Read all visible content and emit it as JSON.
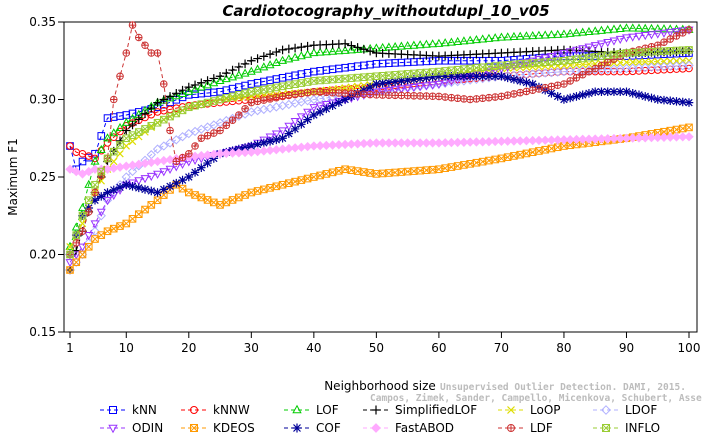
{
  "chart_data": {
    "type": "line",
    "title": "Cardiotocography_withoutdupl_10_v05",
    "xlabel": "Neighborhood size",
    "ylabel": "Maximum F1",
    "xlim": [
      1,
      100
    ],
    "ylim": [
      0.15,
      0.35
    ],
    "xticks": [
      1,
      10,
      20,
      30,
      40,
      50,
      60,
      70,
      80,
      90,
      100
    ],
    "yticks": [
      0.15,
      0.2,
      0.25,
      0.3,
      0.35
    ],
    "ytick_labels": [
      "0.15",
      "0.20",
      "0.25",
      "0.30",
      "0.35"
    ],
    "grid": false,
    "legend_position": "bottom",
    "watermark": [
      "Unsupervised Outlier Detection. DAMI, 2015.",
      "Campos, Zimek, Sander, Campello, Micenkova, Schubert, Assent, Houle"
    ],
    "series": [
      {
        "name": "kNN",
        "color": "#0000ff",
        "marker": "square",
        "points": [
          [
            1,
            0.27
          ],
          [
            2,
            0.255
          ],
          [
            3,
            0.26
          ],
          [
            5,
            0.265
          ],
          [
            7,
            0.288
          ],
          [
            10,
            0.29
          ],
          [
            15,
            0.295
          ],
          [
            20,
            0.303
          ],
          [
            25,
            0.305
          ],
          [
            30,
            0.31
          ],
          [
            40,
            0.318
          ],
          [
            50,
            0.323
          ],
          [
            60,
            0.325
          ],
          [
            70,
            0.325
          ],
          [
            80,
            0.328
          ],
          [
            90,
            0.328
          ],
          [
            100,
            0.33
          ]
        ]
      },
      {
        "name": "kNNW",
        "color": "#ff0000",
        "marker": "circle",
        "points": [
          [
            1,
            0.27
          ],
          [
            2,
            0.266
          ],
          [
            3,
            0.265
          ],
          [
            5,
            0.262
          ],
          [
            7,
            0.272
          ],
          [
            10,
            0.283
          ],
          [
            15,
            0.292
          ],
          [
            20,
            0.296
          ],
          [
            25,
            0.298
          ],
          [
            30,
            0.3
          ],
          [
            40,
            0.305
          ],
          [
            50,
            0.308
          ],
          [
            60,
            0.312
          ],
          [
            70,
            0.315
          ],
          [
            80,
            0.318
          ],
          [
            90,
            0.318
          ],
          [
            100,
            0.32
          ]
        ]
      },
      {
        "name": "LOF",
        "color": "#00cc00",
        "marker": "triangle-up",
        "points": [
          [
            1,
            0.205
          ],
          [
            3,
            0.23
          ],
          [
            5,
            0.26
          ],
          [
            7,
            0.275
          ],
          [
            10,
            0.285
          ],
          [
            15,
            0.298
          ],
          [
            20,
            0.305
          ],
          [
            25,
            0.312
          ],
          [
            30,
            0.318
          ],
          [
            35,
            0.325
          ],
          [
            40,
            0.33
          ],
          [
            50,
            0.333
          ],
          [
            60,
            0.336
          ],
          [
            70,
            0.34
          ],
          [
            80,
            0.342
          ],
          [
            90,
            0.346
          ],
          [
            100,
            0.345
          ]
        ]
      },
      {
        "name": "SimplifiedLOF",
        "color": "#000000",
        "marker": "plus",
        "points": [
          [
            1,
            0.19
          ],
          [
            3,
            0.215
          ],
          [
            5,
            0.24
          ],
          [
            7,
            0.26
          ],
          [
            10,
            0.28
          ],
          [
            15,
            0.298
          ],
          [
            20,
            0.308
          ],
          [
            25,
            0.315
          ],
          [
            30,
            0.325
          ],
          [
            35,
            0.332
          ],
          [
            40,
            0.335
          ],
          [
            45,
            0.336
          ],
          [
            50,
            0.33
          ],
          [
            60,
            0.328
          ],
          [
            70,
            0.33
          ],
          [
            80,
            0.332
          ],
          [
            90,
            0.33
          ],
          [
            100,
            0.331
          ]
        ]
      },
      {
        "name": "LoOP",
        "color": "#dddd00",
        "marker": "cross",
        "points": [
          [
            1,
            0.205
          ],
          [
            3,
            0.22
          ],
          [
            5,
            0.24
          ],
          [
            7,
            0.255
          ],
          [
            10,
            0.27
          ],
          [
            15,
            0.285
          ],
          [
            20,
            0.295
          ],
          [
            25,
            0.3
          ],
          [
            30,
            0.302
          ],
          [
            40,
            0.305
          ],
          [
            50,
            0.31
          ],
          [
            60,
            0.315
          ],
          [
            70,
            0.32
          ],
          [
            80,
            0.322
          ],
          [
            90,
            0.324
          ],
          [
            100,
            0.325
          ]
        ]
      },
      {
        "name": "LDOF",
        "color": "#b0b0ff",
        "marker": "diamond",
        "points": [
          [
            1,
            0.19
          ],
          [
            3,
            0.2
          ],
          [
            5,
            0.215
          ],
          [
            7,
            0.235
          ],
          [
            10,
            0.25
          ],
          [
            15,
            0.268
          ],
          [
            20,
            0.278
          ],
          [
            25,
            0.285
          ],
          [
            30,
            0.292
          ],
          [
            40,
            0.3
          ],
          [
            50,
            0.305
          ],
          [
            60,
            0.31
          ],
          [
            70,
            0.315
          ],
          [
            80,
            0.318
          ],
          [
            90,
            0.32
          ],
          [
            100,
            0.322
          ]
        ]
      },
      {
        "name": "ODIN",
        "color": "#9933ff",
        "marker": "triangle-down",
        "points": [
          [
            1,
            0.195
          ],
          [
            3,
            0.205
          ],
          [
            5,
            0.22
          ],
          [
            7,
            0.235
          ],
          [
            10,
            0.245
          ],
          [
            15,
            0.252
          ],
          [
            20,
            0.26
          ],
          [
            25,
            0.265
          ],
          [
            30,
            0.27
          ],
          [
            35,
            0.28
          ],
          [
            40,
            0.295
          ],
          [
            45,
            0.3
          ],
          [
            50,
            0.305
          ],
          [
            60,
            0.31
          ],
          [
            70,
            0.32
          ],
          [
            80,
            0.33
          ],
          [
            90,
            0.34
          ],
          [
            100,
            0.345
          ]
        ]
      },
      {
        "name": "KDEOS",
        "color": "#ff9900",
        "marker": "square-x",
        "points": [
          [
            1,
            0.19
          ],
          [
            3,
            0.2
          ],
          [
            5,
            0.21
          ],
          [
            7,
            0.215
          ],
          [
            10,
            0.22
          ],
          [
            15,
            0.235
          ],
          [
            18,
            0.245
          ],
          [
            20,
            0.24
          ],
          [
            25,
            0.232
          ],
          [
            30,
            0.24
          ],
          [
            35,
            0.245
          ],
          [
            40,
            0.25
          ],
          [
            45,
            0.255
          ],
          [
            50,
            0.252
          ],
          [
            60,
            0.255
          ],
          [
            70,
            0.262
          ],
          [
            80,
            0.27
          ],
          [
            90,
            0.275
          ],
          [
            100,
            0.282
          ]
        ]
      },
      {
        "name": "COF",
        "color": "#000099",
        "marker": "star",
        "points": [
          [
            1,
            0.2
          ],
          [
            3,
            0.225
          ],
          [
            5,
            0.235
          ],
          [
            7,
            0.24
          ],
          [
            10,
            0.245
          ],
          [
            15,
            0.24
          ],
          [
            20,
            0.25
          ],
          [
            25,
            0.265
          ],
          [
            30,
            0.27
          ],
          [
            35,
            0.275
          ],
          [
            40,
            0.29
          ],
          [
            45,
            0.3
          ],
          [
            50,
            0.31
          ],
          [
            60,
            0.315
          ],
          [
            70,
            0.315
          ],
          [
            75,
            0.31
          ],
          [
            80,
            0.3
          ],
          [
            85,
            0.305
          ],
          [
            90,
            0.305
          ],
          [
            95,
            0.3
          ],
          [
            100,
            0.298
          ]
        ]
      },
      {
        "name": "FastABOD",
        "color": "#ffaaff",
        "marker": "diamond-filled",
        "points": [
          [
            1,
            0.255
          ],
          [
            3,
            0.252
          ],
          [
            5,
            0.255
          ],
          [
            7,
            0.255
          ],
          [
            10,
            0.257
          ],
          [
            15,
            0.26
          ],
          [
            20,
            0.263
          ],
          [
            25,
            0.265
          ],
          [
            30,
            0.266
          ],
          [
            40,
            0.27
          ],
          [
            50,
            0.272
          ],
          [
            60,
            0.272
          ],
          [
            70,
            0.273
          ],
          [
            80,
            0.274
          ],
          [
            90,
            0.275
          ],
          [
            100,
            0.276
          ]
        ]
      },
      {
        "name": "LDF",
        "color": "#cc3333",
        "marker": "circle-plus",
        "points": [
          [
            1,
            0.2
          ],
          [
            3,
            0.215
          ],
          [
            5,
            0.24
          ],
          [
            7,
            0.262
          ],
          [
            8,
            0.3
          ],
          [
            9,
            0.315
          ],
          [
            10,
            0.33
          ],
          [
            11,
            0.348
          ],
          [
            12,
            0.34
          ],
          [
            13,
            0.335
          ],
          [
            14,
            0.33
          ],
          [
            15,
            0.33
          ],
          [
            16,
            0.31
          ],
          [
            17,
            0.28
          ],
          [
            18,
            0.26
          ],
          [
            20,
            0.265
          ],
          [
            22,
            0.275
          ],
          [
            25,
            0.28
          ],
          [
            28,
            0.29
          ],
          [
            30,
            0.298
          ],
          [
            35,
            0.302
          ],
          [
            40,
            0.305
          ],
          [
            50,
            0.303
          ],
          [
            60,
            0.302
          ],
          [
            65,
            0.3
          ],
          [
            70,
            0.302
          ],
          [
            80,
            0.31
          ],
          [
            90,
            0.33
          ],
          [
            95,
            0.335
          ],
          [
            100,
            0.345
          ]
        ]
      },
      {
        "name": "INFLO",
        "color": "#99cc33",
        "marker": "square-x",
        "points": [
          [
            1,
            0.2
          ],
          [
            3,
            0.225
          ],
          [
            5,
            0.245
          ],
          [
            7,
            0.262
          ],
          [
            10,
            0.275
          ],
          [
            15,
            0.285
          ],
          [
            20,
            0.295
          ],
          [
            25,
            0.3
          ],
          [
            30,
            0.305
          ],
          [
            40,
            0.312
          ],
          [
            50,
            0.315
          ],
          [
            60,
            0.318
          ],
          [
            70,
            0.322
          ],
          [
            80,
            0.325
          ],
          [
            90,
            0.33
          ],
          [
            100,
            0.332
          ]
        ]
      }
    ]
  }
}
